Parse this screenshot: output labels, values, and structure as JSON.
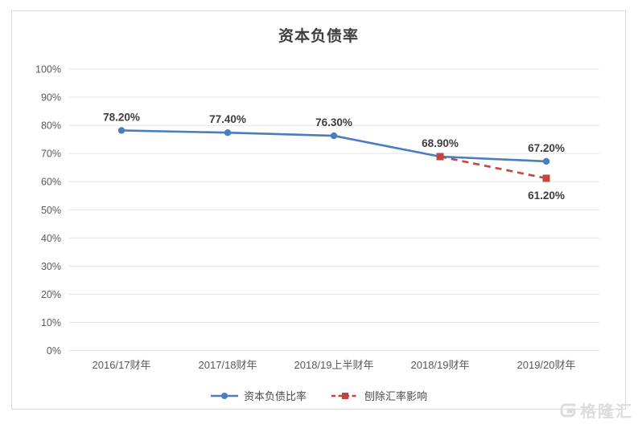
{
  "watermark": {
    "text": "格隆汇"
  },
  "chart_data": {
    "type": "line",
    "title": "资本负债率",
    "categories": [
      "2016/17财年",
      "2017/18财年",
      "2018/19上半财年",
      "2018/19财年",
      "2019/20财年"
    ],
    "series": [
      {
        "id": "capital-debt-ratio",
        "name": "资本负债比率",
        "values": [
          78.2,
          77.4,
          76.3,
          68.9,
          67.2
        ],
        "labels": [
          "78.20%",
          "77.40%",
          "76.30%",
          "68.90%",
          "67.20%"
        ],
        "label_position": "above",
        "color": "#4A7CC0",
        "marker": "circle",
        "dashed": false
      },
      {
        "id": "excluding-fx-impact",
        "name": "刨除汇率影响",
        "values": [
          null,
          null,
          null,
          68.9,
          61.2
        ],
        "labels": [
          null,
          null,
          null,
          null,
          "61.20%"
        ],
        "label_position": "below",
        "color": "#C2453E",
        "marker": "square",
        "dashed": true
      }
    ],
    "y_axis": {
      "min": 0,
      "max": 100,
      "step": 10,
      "tick_labels": [
        "0%",
        "10%",
        "20%",
        "30%",
        "40%",
        "50%",
        "60%",
        "70%",
        "80%",
        "90%",
        "100%"
      ]
    },
    "xlabel": "",
    "ylabel": "",
    "grid": true,
    "legend_position": "bottom"
  }
}
